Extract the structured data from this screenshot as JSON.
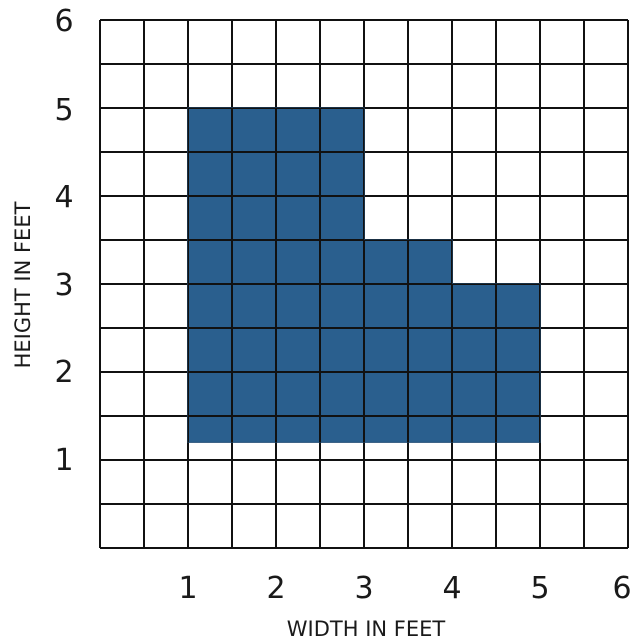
{
  "figure": {
    "x_axis_label": "WIDTH IN FEET",
    "y_axis_label": "HEIGHT IN FEET",
    "x_tick_labels": [
      "1",
      "2",
      "3",
      "4",
      "5",
      "6"
    ],
    "y_tick_labels": [
      "1",
      "2",
      "3",
      "4",
      "5",
      "6"
    ],
    "grid_units": {
      "columns": 12,
      "rows": 12,
      "feet_per_cell": 0.5
    },
    "shaded_shape": {
      "description_units": "feet",
      "vertices": [
        [
          1,
          5
        ],
        [
          3,
          5
        ],
        [
          3,
          3.5
        ],
        [
          4,
          3.5
        ],
        [
          4,
          3
        ],
        [
          5,
          3
        ],
        [
          5,
          1.2
        ],
        [
          1,
          1.2
        ]
      ],
      "fill_color": "#2a5f8e"
    },
    "colors": {
      "grid": "#111111",
      "background": "#ffffff",
      "text": "#1a1a1a"
    }
  }
}
